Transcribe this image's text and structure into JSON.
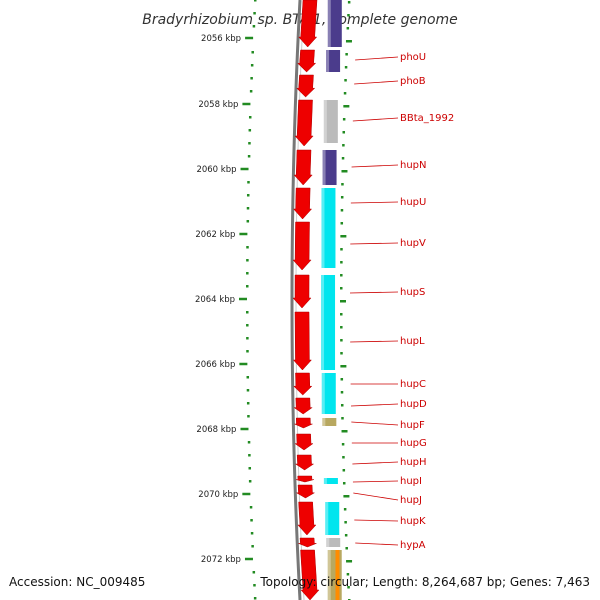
{
  "title": "Bradyrhizobium sp. BTAi1, complete genome",
  "accession": "Accession: NC_009485",
  "summary": "Topology: circular; Length: 8,264,687 bp; Genes: 7,463",
  "colors": {
    "forward_cds": "#ee0000",
    "cog_navy": "#4b3c8c",
    "cog_grey": "#bbbbbb",
    "cog_cyan": "#00e5ee",
    "cog_olive": "#b8a860",
    "cog_orange": "#ff8c00",
    "label": "#cc0000",
    "tick": "#228b22",
    "backbone": "#777777"
  },
  "ticks": [
    {
      "label": "2056 kbp"
    },
    {
      "label": "2058 kbp"
    },
    {
      "label": "2060 kbp"
    },
    {
      "label": "2062 kbp"
    },
    {
      "label": "2064 kbp"
    },
    {
      "label": "2066 kbp"
    },
    {
      "label": "2068 kbp"
    },
    {
      "label": "2070 kbp"
    },
    {
      "label": "2072 kbp"
    }
  ],
  "genes": [
    {
      "name": "phoU",
      "cog": "cog_navy"
    },
    {
      "name": "phoB",
      "cog": "cog_navy"
    },
    {
      "name": "BBta_1992",
      "cog": "cog_grey"
    },
    {
      "name": "hupN",
      "cog": "cog_navy"
    },
    {
      "name": "hupU",
      "cog": "cog_cyan"
    },
    {
      "name": "hupV",
      "cog": "cog_cyan"
    },
    {
      "name": "hupS",
      "cog": "cog_cyan"
    },
    {
      "name": "hupL",
      "cog": "cog_cyan"
    },
    {
      "name": "hupC",
      "cog": "cog_cyan"
    },
    {
      "name": "hupD",
      "cog": "cog_cyan"
    },
    {
      "name": "hupF",
      "cog": "cog_olive"
    },
    {
      "name": "hupG",
      "cog": ""
    },
    {
      "name": "hupH",
      "cog": ""
    },
    {
      "name": "hupI",
      "cog": "cog_cyan"
    },
    {
      "name": "hupJ",
      "cog": ""
    },
    {
      "name": "hupK",
      "cog": "cog_cyan"
    },
    {
      "name": "hypA",
      "cog": "cog_grey"
    }
  ]
}
